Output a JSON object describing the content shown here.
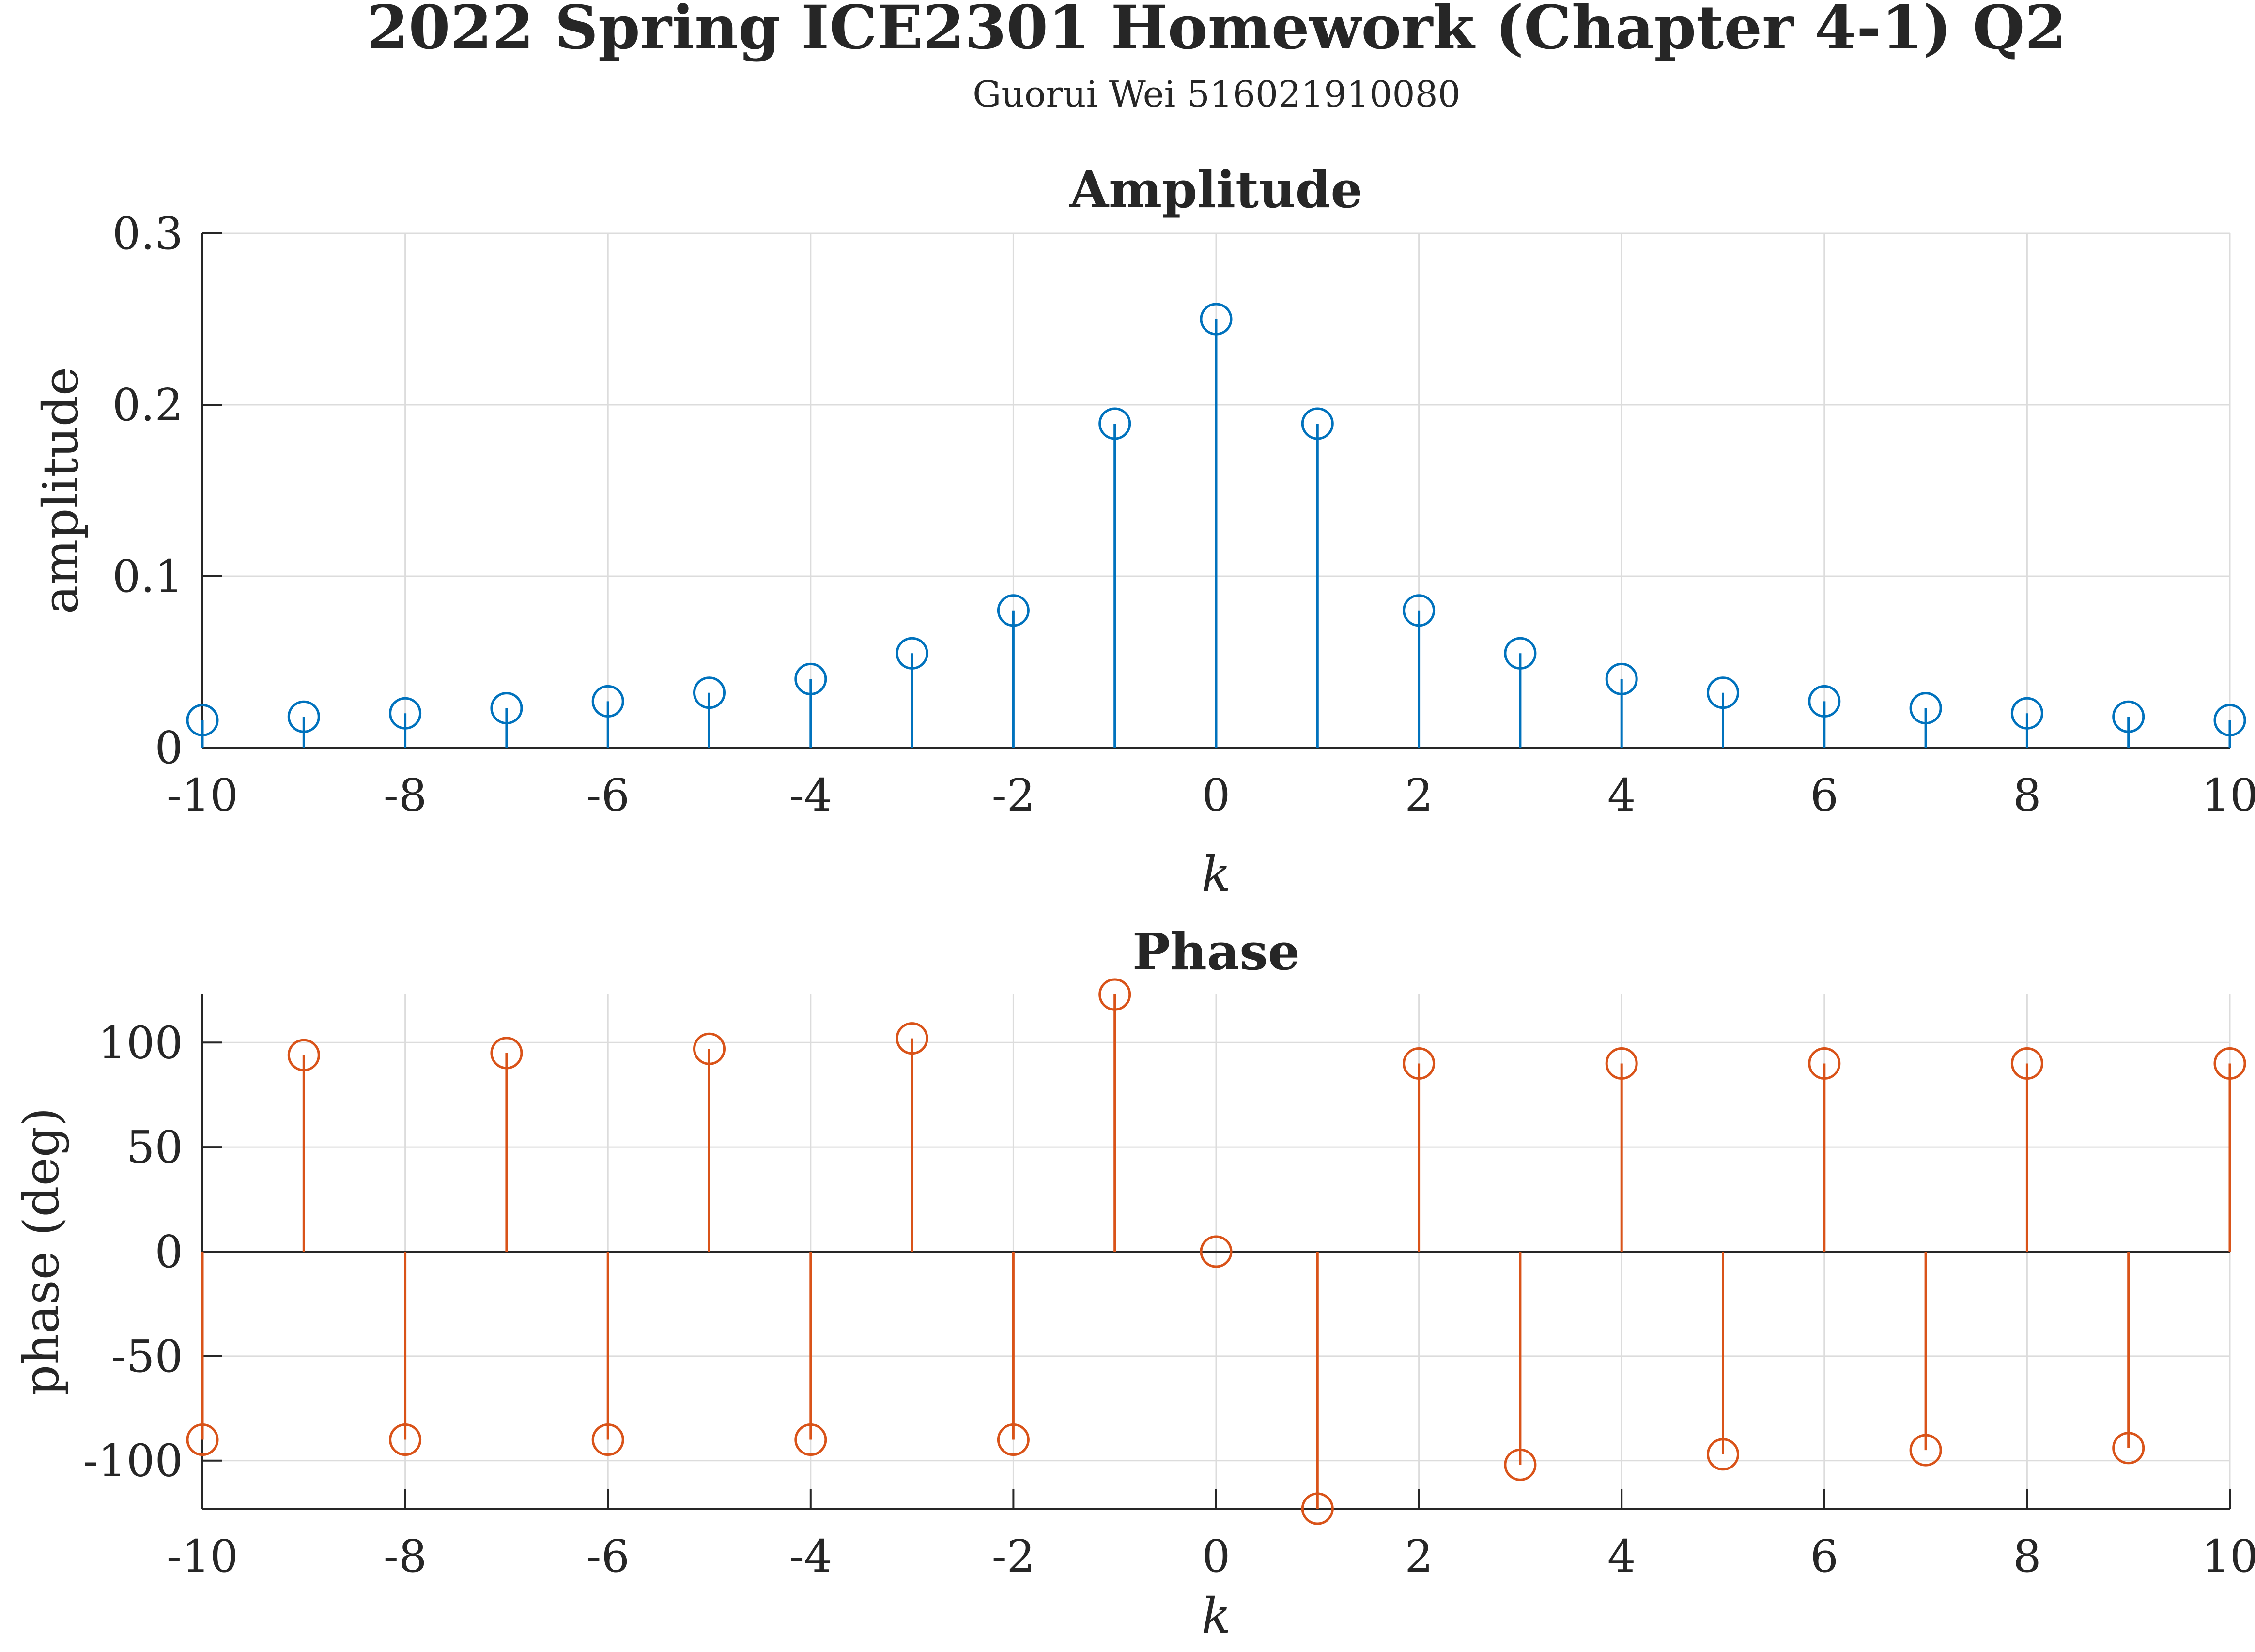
{
  "figure": {
    "title": "2022 Spring ICE2301 Homework (Chapter 4-1) Q2",
    "subtitle": "Guorui Wei 516021910080"
  },
  "chart_data": [
    {
      "type": "stem",
      "title": "Amplitude",
      "xlabel": "k",
      "ylabel": "amplitude",
      "xlim": [
        -10,
        10
      ],
      "ylim": [
        0,
        0.3
      ],
      "xticks": [
        "-10",
        "-8",
        "-6",
        "-4",
        "-2",
        "0",
        "2",
        "4",
        "6",
        "8",
        "10"
      ],
      "yticks": [
        "0",
        "0.1",
        "0.2",
        "0.3"
      ],
      "grid": true,
      "color": "#0072BD",
      "x": [
        -10,
        -9,
        -8,
        -7,
        -6,
        -5,
        -4,
        -3,
        -2,
        -1,
        0,
        1,
        2,
        3,
        4,
        5,
        6,
        7,
        8,
        9,
        10
      ],
      "y": [
        0.016,
        0.018,
        0.02,
        0.023,
        0.027,
        0.032,
        0.04,
        0.055,
        0.08,
        0.189,
        0.25,
        0.189,
        0.08,
        0.055,
        0.04,
        0.032,
        0.027,
        0.023,
        0.02,
        0.018,
        0.016
      ]
    },
    {
      "type": "stem",
      "title": "Phase",
      "xlabel": "k",
      "ylabel": "phase (deg)",
      "xlim": [
        -10,
        10
      ],
      "ylim": [
        -123,
        123
      ],
      "xticks": [
        "-10",
        "-8",
        "-6",
        "-4",
        "-2",
        "0",
        "2",
        "4",
        "6",
        "8",
        "10"
      ],
      "yticks": [
        "-100",
        "-50",
        "0",
        "50",
        "100"
      ],
      "grid": true,
      "color": "#D95319",
      "x": [
        -10,
        -9,
        -8,
        -7,
        -6,
        -5,
        -4,
        -3,
        -2,
        -1,
        0,
        1,
        2,
        3,
        4,
        5,
        6,
        7,
        8,
        9,
        10
      ],
      "y": [
        -90,
        94,
        -90,
        95,
        -90,
        97,
        -90,
        102,
        -90,
        123,
        0,
        -123,
        90,
        -102,
        90,
        -97,
        90,
        -95,
        90,
        -94,
        90
      ]
    }
  ]
}
